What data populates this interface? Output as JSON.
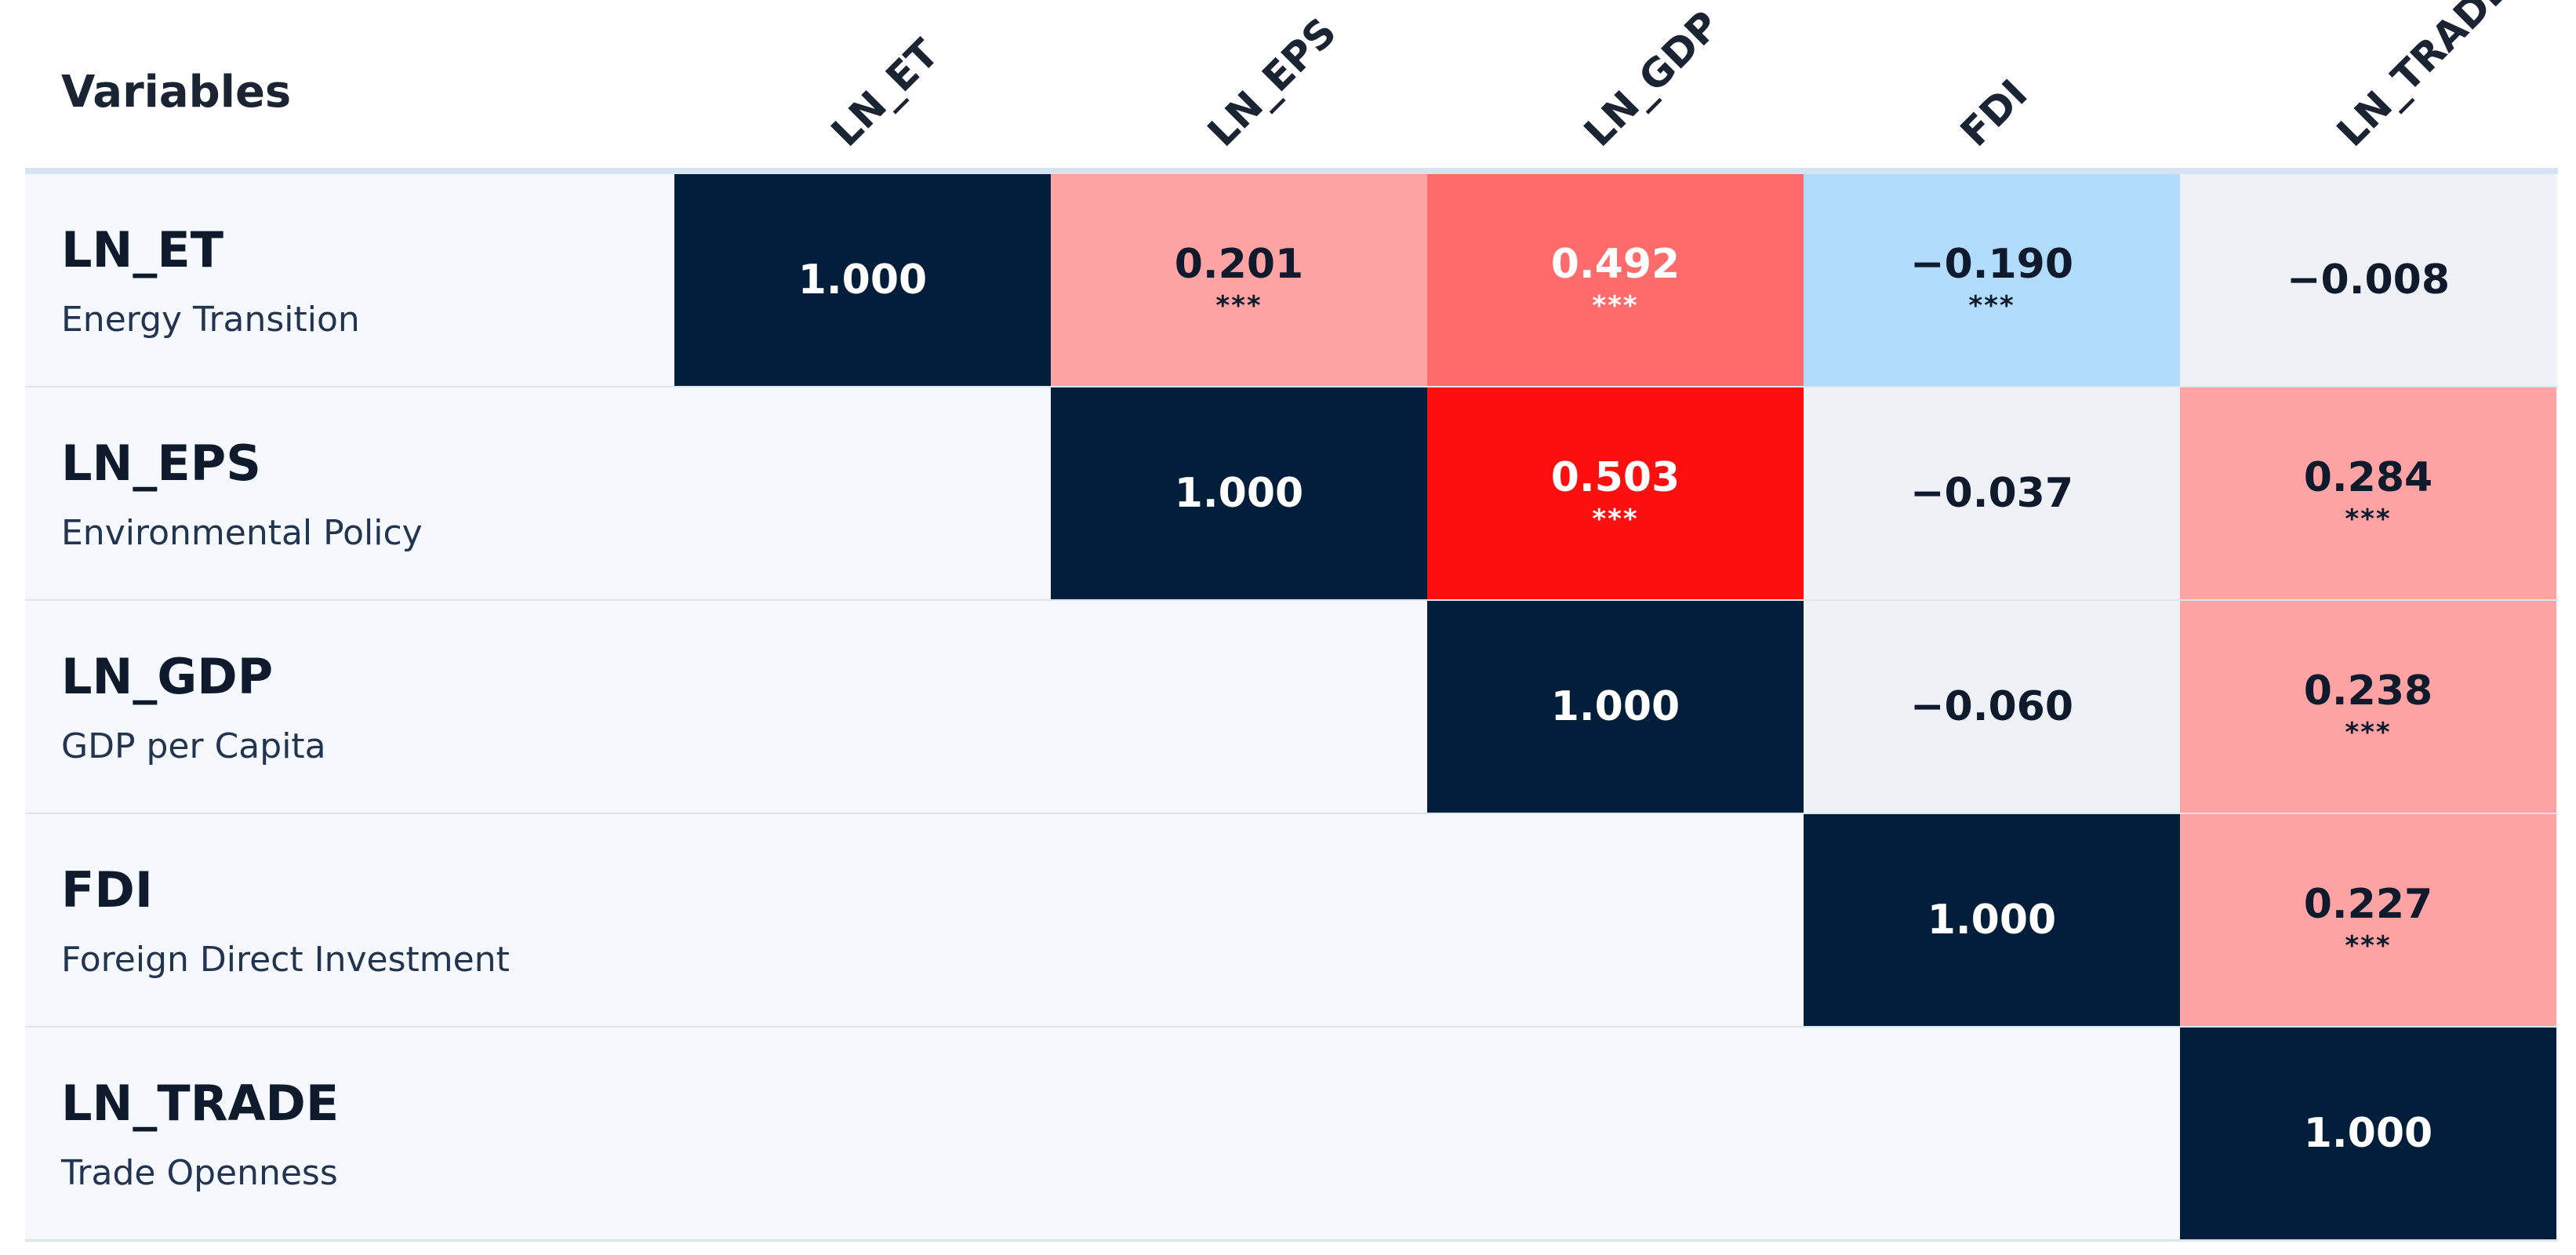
{
  "chart_data": {
    "type": "heatmap",
    "header_label": "Variables",
    "columns": [
      "LN_ET",
      "LN_EPS",
      "LN_GDP",
      "FDI",
      "LN_TRADE"
    ],
    "rows": [
      {
        "code": "LN_ET",
        "description": "Energy Transition"
      },
      {
        "code": "LN_EPS",
        "description": "Environmental Policy"
      },
      {
        "code": "LN_GDP",
        "description": "GDP per Capita"
      },
      {
        "code": "FDI",
        "description": "Foreign Direct Investment"
      },
      {
        "code": "LN_TRADE",
        "description": "Trade Openness"
      }
    ],
    "cells": [
      [
        {
          "value": 1.0,
          "label": "1.000",
          "sig": ""
        },
        {
          "value": 0.201,
          "label": "0.201",
          "sig": "***"
        },
        {
          "value": 0.492,
          "label": "0.492",
          "sig": "***"
        },
        {
          "value": -0.19,
          "label": "−0.190",
          "sig": "***"
        },
        {
          "value": -0.008,
          "label": "−0.008",
          "sig": ""
        }
      ],
      [
        null,
        {
          "value": 1.0,
          "label": "1.000",
          "sig": ""
        },
        {
          "value": 0.503,
          "label": "0.503",
          "sig": "***"
        },
        {
          "value": -0.037,
          "label": "−0.037",
          "sig": ""
        },
        {
          "value": 0.284,
          "label": "0.284",
          "sig": "***"
        }
      ],
      [
        null,
        null,
        {
          "value": 1.0,
          "label": "1.000",
          "sig": ""
        },
        {
          "value": -0.06,
          "label": "−0.060",
          "sig": ""
        },
        {
          "value": 0.238,
          "label": "0.238",
          "sig": "***"
        }
      ],
      [
        null,
        null,
        null,
        {
          "value": 1.0,
          "label": "1.000",
          "sig": ""
        },
        {
          "value": 0.227,
          "label": "0.227",
          "sig": "***"
        }
      ],
      [
        null,
        null,
        null,
        null,
        {
          "value": 1.0,
          "label": "1.000",
          "sig": ""
        }
      ]
    ],
    "colors": {
      "diagonal": "#021e3b",
      "strong_positive": "#fe0f0f",
      "medium_positive": "#fe6b6b",
      "weak_positive": "#fea3a3",
      "weak_negative": "#b2dcfc",
      "near_zero": "#eef2f7",
      "empty": "#f5f8fc",
      "light_text": "#ffffff",
      "dark_text": "#0f1b2d"
    }
  }
}
